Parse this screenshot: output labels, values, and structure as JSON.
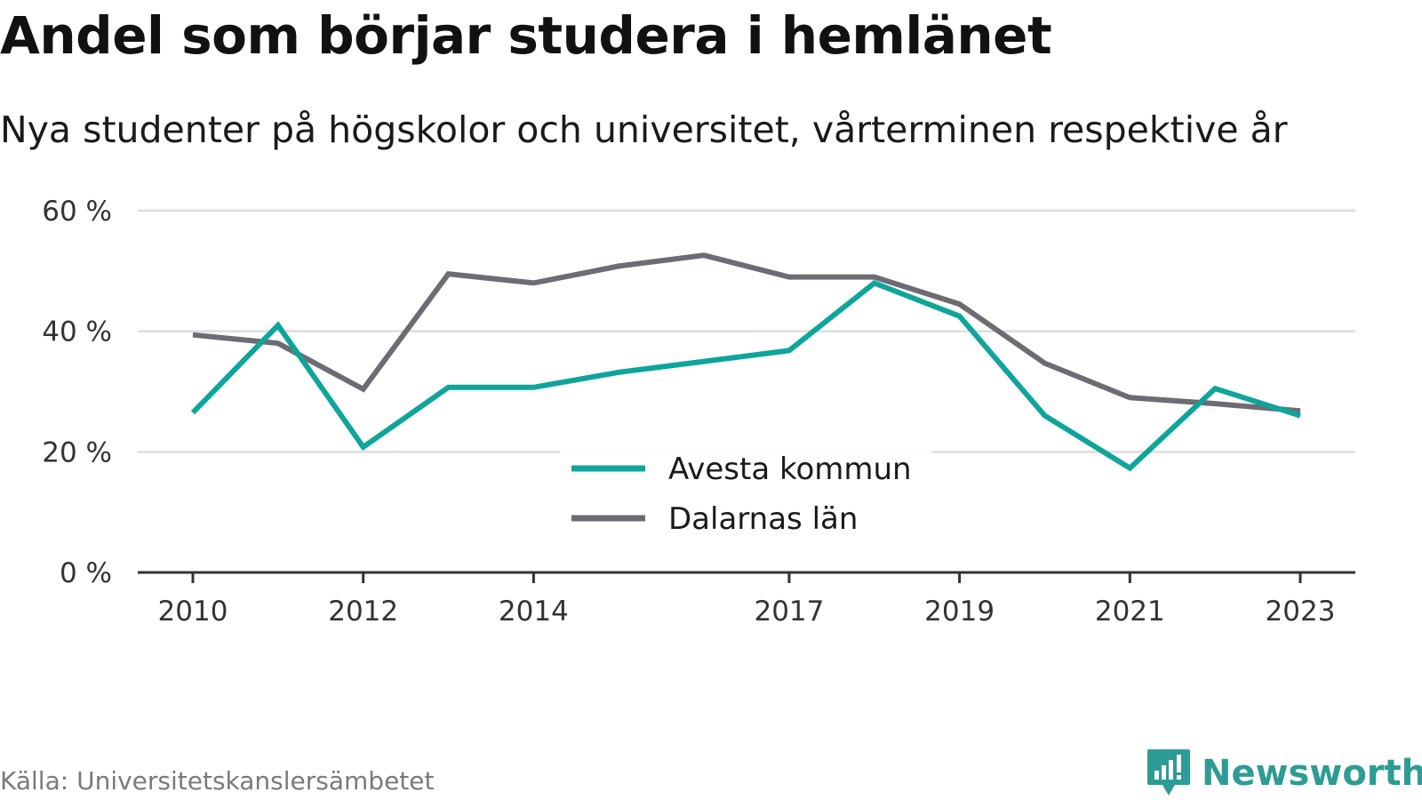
{
  "header": {
    "title": "Andel som börjar studera i hemlänet",
    "subtitle": "Nya studenter på högskolor och universitet, vårterminen respektive år"
  },
  "footer": {
    "source": "Källa: Universitetskanslersämbetet",
    "brand": "Newsworthy"
  },
  "icons": {
    "brand_logo": "newsworthy-logo-icon"
  },
  "colors": {
    "avesta": "#0fa59a",
    "dalarna": "#6e6c73",
    "grid": "#dddddd",
    "axis": "#333333",
    "brand": "#2e9c94"
  },
  "chart_data": {
    "type": "line",
    "title": "Andel som börjar studera i hemlänet",
    "subtitle": "Nya studenter på högskolor och universitet, vårterminen respektive år",
    "xlabel": "",
    "ylabel": "",
    "x": [
      2010,
      2011,
      2012,
      2013,
      2014,
      2015,
      2016,
      2017,
      2018,
      2019,
      2020,
      2021,
      2022,
      2023
    ],
    "x_tick_labels": [
      "2010",
      "2012",
      "2014",
      "2017",
      "2019",
      "2021",
      "2023"
    ],
    "y_ticks": [
      0,
      20,
      40,
      60
    ],
    "y_tick_labels": [
      "0 %",
      "20 %",
      "40 %",
      "60 %"
    ],
    "ylim": [
      0,
      60
    ],
    "grid": true,
    "legend_position": "bottom-center",
    "series": [
      {
        "name": "Avesta kommun",
        "values": [
          26.5,
          41,
          20.8,
          30.7,
          30.7,
          33.2,
          35,
          36.8,
          48,
          42.5,
          26,
          17.3,
          30.5,
          26
        ]
      },
      {
        "name": "Dalarnas län",
        "values": [
          39.4,
          38,
          30.4,
          49.5,
          48,
          50.8,
          52.6,
          49,
          49,
          44.5,
          34.7,
          29,
          28,
          26.8
        ]
      }
    ]
  }
}
